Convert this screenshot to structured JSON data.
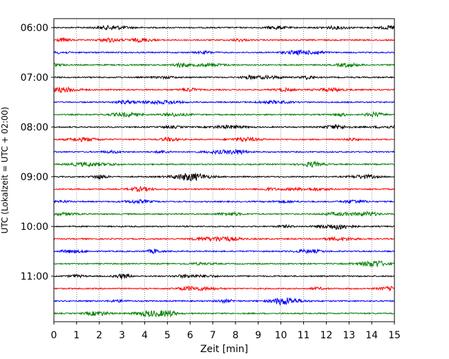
{
  "chart_data": {
    "type": "line",
    "title": "",
    "xlabel": "Zeit  [min]",
    "ylabel": "UTC (Lokalzeit = UTC + 02:00)",
    "xlim": [
      0,
      15
    ],
    "x_ticks": [
      0,
      1,
      2,
      3,
      4,
      5,
      6,
      7,
      8,
      9,
      10,
      11,
      12,
      13,
      14,
      15
    ],
    "y_tick_labels": [
      "06:00",
      "07:00",
      "08:00",
      "09:00",
      "10:00",
      "11:00"
    ],
    "grid": "vertical dotted",
    "legend": "none",
    "trace_interval_minutes": 15,
    "colors": [
      "#000000",
      "#ff0000",
      "#0000ff",
      "#008000"
    ],
    "traces": [
      {
        "start": "06:00",
        "color": "#000000"
      },
      {
        "start": "06:15",
        "color": "#ff0000"
      },
      {
        "start": "06:30",
        "color": "#0000ff"
      },
      {
        "start": "06:45",
        "color": "#008000"
      },
      {
        "start": "07:00",
        "color": "#000000"
      },
      {
        "start": "07:15",
        "color": "#ff0000"
      },
      {
        "start": "07:30",
        "color": "#0000ff"
      },
      {
        "start": "07:45",
        "color": "#008000"
      },
      {
        "start": "08:00",
        "color": "#000000"
      },
      {
        "start": "08:15",
        "color": "#ff0000"
      },
      {
        "start": "08:30",
        "color": "#0000ff"
      },
      {
        "start": "08:45",
        "color": "#008000"
      },
      {
        "start": "09:00",
        "color": "#000000"
      },
      {
        "start": "09:15",
        "color": "#ff0000"
      },
      {
        "start": "09:30",
        "color": "#0000ff"
      },
      {
        "start": "09:45",
        "color": "#008000"
      },
      {
        "start": "10:00",
        "color": "#000000"
      },
      {
        "start": "10:15",
        "color": "#ff0000"
      },
      {
        "start": "10:30",
        "color": "#0000ff"
      },
      {
        "start": "10:45",
        "color": "#008000"
      },
      {
        "start": "11:00",
        "color": "#000000"
      },
      {
        "start": "11:15",
        "color": "#ff0000"
      },
      {
        "start": "11:30",
        "color": "#0000ff"
      },
      {
        "start": "11:45",
        "color": "#008000"
      }
    ]
  }
}
